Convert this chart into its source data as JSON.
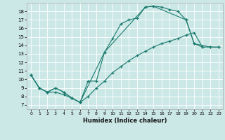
{
  "xlabel": "Humidex (Indice chaleur)",
  "bg_color": "#cce8e6",
  "grid_color": "#ffffff",
  "line_color": "#1a7a6e",
  "xlim": [
    -0.5,
    23.5
  ],
  "ylim": [
    6.5,
    19.0
  ],
  "xticks": [
    0,
    1,
    2,
    3,
    4,
    5,
    6,
    7,
    8,
    9,
    10,
    11,
    12,
    13,
    14,
    15,
    16,
    17,
    18,
    19,
    20,
    21,
    22,
    23
  ],
  "yticks": [
    7,
    8,
    9,
    10,
    11,
    12,
    13,
    14,
    15,
    16,
    17,
    18
  ],
  "line1_x": [
    0,
    1,
    2,
    3,
    4,
    5,
    6,
    7,
    8,
    9,
    10,
    11,
    12,
    13,
    14,
    15,
    16,
    17,
    18,
    19,
    20,
    21
  ],
  "line1_y": [
    10.5,
    9.0,
    8.5,
    9.0,
    8.5,
    7.8,
    7.3,
    9.8,
    9.8,
    13.2,
    14.8,
    16.5,
    17.0,
    17.2,
    18.5,
    18.6,
    18.5,
    18.2,
    18.0,
    17.0,
    14.2,
    13.8
  ],
  "line2_x": [
    0,
    1,
    2,
    3,
    4,
    5,
    6,
    7,
    8,
    9,
    10,
    11,
    12,
    13,
    14,
    15,
    16,
    17,
    18,
    19,
    20,
    21,
    22,
    23
  ],
  "line2_y": [
    10.5,
    9.0,
    8.5,
    8.5,
    8.2,
    7.8,
    7.3,
    8.0,
    9.0,
    9.8,
    10.8,
    11.5,
    12.2,
    12.8,
    13.3,
    13.8,
    14.2,
    14.5,
    14.8,
    15.2,
    15.5,
    13.8,
    13.8,
    13.8
  ],
  "line3_x": [
    0,
    1,
    2,
    3,
    4,
    5,
    6,
    9,
    14,
    15,
    19,
    20,
    22,
    23
  ],
  "line3_y": [
    10.5,
    9.0,
    8.5,
    9.0,
    8.5,
    7.8,
    7.3,
    13.2,
    18.5,
    18.6,
    17.0,
    14.2,
    13.8,
    13.8
  ]
}
